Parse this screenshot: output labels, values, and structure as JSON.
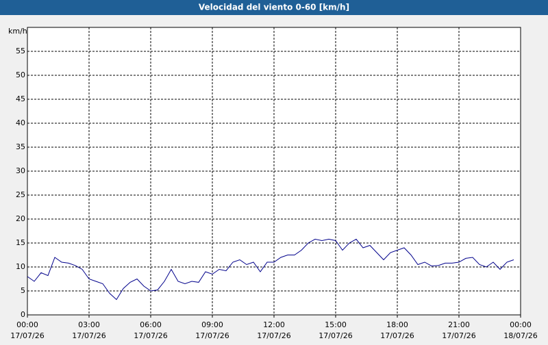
{
  "chart_data": {
    "type": "line",
    "title": "Velocidad del viento 0-60 [km/h]",
    "y_label": "km/h",
    "x": [
      "17/07/26 00:00",
      "17/07/26 00:20",
      "17/07/26 00:40",
      "17/07/26 01:00",
      "17/07/26 01:20",
      "17/07/26 01:40",
      "17/07/26 02:00",
      "17/07/26 02:20",
      "17/07/26 02:40",
      "17/07/26 03:00",
      "17/07/26 03:20",
      "17/07/26 03:40",
      "17/07/26 04:00",
      "17/07/26 04:20",
      "17/07/26 04:40",
      "17/07/26 05:00",
      "17/07/26 05:20",
      "17/07/26 05:40",
      "17/07/26 06:00",
      "17/07/26 06:20",
      "17/07/26 06:40",
      "17/07/26 07:00",
      "17/07/26 07:20",
      "17/07/26 07:40",
      "17/07/26 08:00",
      "17/07/26 08:20",
      "17/07/26 08:40",
      "17/07/26 09:00",
      "17/07/26 09:20",
      "17/07/26 09:40",
      "17/07/26 10:00",
      "17/07/26 10:20",
      "17/07/26 10:40",
      "17/07/26 11:00",
      "17/07/26 11:20",
      "17/07/26 11:40",
      "17/07/26 12:00",
      "17/07/26 12:20",
      "17/07/26 12:40",
      "17/07/26 13:00",
      "17/07/26 13:20",
      "17/07/26 13:40",
      "17/07/26 14:00",
      "17/07/26 14:20",
      "17/07/26 14:40",
      "17/07/26 15:00",
      "17/07/26 15:20",
      "17/07/26 15:40",
      "17/07/26 16:00",
      "17/07/26 16:20",
      "17/07/26 16:40",
      "17/07/26 17:00",
      "17/07/26 17:20",
      "17/07/26 17:40",
      "17/07/26 18:00",
      "17/07/26 18:20",
      "17/07/26 18:40",
      "17/07/26 19:00",
      "17/07/26 19:20",
      "17/07/26 19:40",
      "17/07/26 20:00",
      "17/07/26 20:20",
      "17/07/26 20:40",
      "17/07/26 21:00",
      "17/07/26 21:20",
      "17/07/26 21:40",
      "17/07/26 22:00",
      "17/07/26 22:20",
      "17/07/26 22:40",
      "17/07/26 23:00",
      "17/07/26 23:20",
      "17/07/26 23:40"
    ],
    "series": [
      {
        "color": "#00008b",
        "values": [
          8,
          7,
          8.8,
          8.2,
          12,
          11,
          10.8,
          10.3,
          9.5,
          7.5,
          7,
          6.5,
          4.5,
          3.2,
          5.5,
          6.8,
          7.5,
          6,
          5,
          5.2,
          7,
          9.5,
          7,
          6.5,
          7,
          6.8,
          9,
          8.5,
          9.5,
          9.2,
          11,
          11.5,
          10.5,
          11,
          9,
          11,
          11,
          12,
          12.5,
          12.5,
          13.5,
          15,
          15.8,
          15.5,
          15.8,
          15.5,
          13.5,
          15,
          15.8,
          14,
          14.5,
          13,
          11.5,
          13,
          13.5,
          14,
          12.5,
          10.5,
          11,
          10.2,
          10.3,
          10.8,
          10.8,
          11,
          11.8,
          12,
          10.5,
          10,
          11,
          9.5,
          11,
          11.5
        ]
      }
    ],
    "xlim": [
      "17/07/26 00:00",
      "18/07/26 00:00"
    ],
    "xticks": [
      {
        "value": "17/07/26 00:00",
        "label": [
          "00:00",
          "17/07/26"
        ]
      },
      {
        "value": "17/07/26 03:00",
        "label": [
          "03:00",
          "17/07/26"
        ]
      },
      {
        "value": "17/07/26 06:00",
        "label": [
          "06:00",
          "17/07/26"
        ]
      },
      {
        "value": "17/07/26 09:00",
        "label": [
          "09:00",
          "17/07/26"
        ]
      },
      {
        "value": "17/07/26 12:00",
        "label": [
          "12:00",
          "17/07/26"
        ]
      },
      {
        "value": "17/07/26 15:00",
        "label": [
          "15:00",
          "17/07/26"
        ]
      },
      {
        "value": "17/07/26 18:00",
        "label": [
          "18:00",
          "17/07/26"
        ]
      },
      {
        "value": "17/07/26 21:00",
        "label": [
          "21:00",
          "17/07/26"
        ]
      },
      {
        "value": "18/07/26 00:00",
        "label": [
          "00:00",
          "18/07/26"
        ]
      }
    ],
    "ylim": [
      0,
      60
    ],
    "yticks": [
      0,
      5,
      10,
      15,
      20,
      25,
      30,
      35,
      40,
      45,
      50,
      55
    ],
    "grid": true
  }
}
